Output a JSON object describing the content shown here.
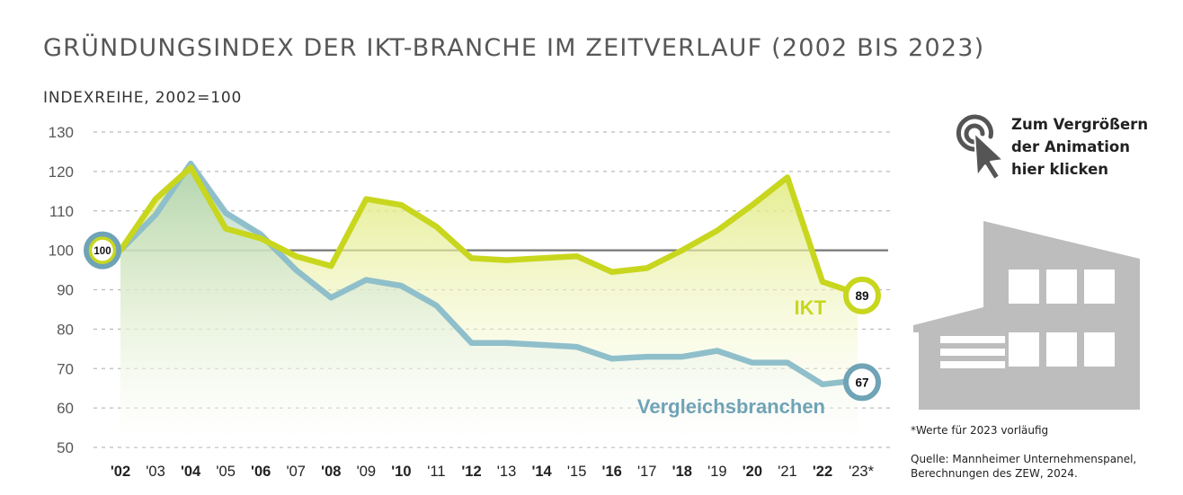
{
  "title": "GRÜNDUNGSINDEX DER IKT-BRANCHE IM ZEITVERLAUF (2002 BIS 2023)",
  "subtitle": "INDEXREIHE, 2002=100",
  "cta": {
    "lines": [
      "Zum Vergrößern",
      "der Animation",
      "hier klicken"
    ],
    "icon": "cursor-click-icon"
  },
  "illustration": "building-icon",
  "footnote": "*Werte für 2023 vorläufig",
  "source": {
    "lines": [
      "Quelle: Mannheimer Unternehmenspanel,",
      "Berechnungen des ZEW, 2024."
    ]
  },
  "colors": {
    "ikt": "#c8d61e",
    "vergleich": "#8fbfca",
    "vergleich_dark": "#6fa3b6",
    "grid": "#bbbbbb",
    "baseline": "#777777",
    "text": "#575757"
  },
  "chart_data": {
    "type": "line",
    "title": "GRÜNDUNGSINDEX DER IKT-BRANCHE IM ZEITVERLAUF (2002 BIS 2023)",
    "ylabel": "INDEXREIHE, 2002=100",
    "ylim": [
      50,
      130
    ],
    "yticks": [
      130,
      120,
      110,
      100,
      90,
      80,
      70,
      60,
      50
    ],
    "grid": true,
    "reference_line": 100,
    "x": [
      "'02",
      "'03",
      "'04",
      "'05",
      "'06",
      "'07",
      "'08",
      "'09",
      "'10",
      "'11",
      "'12",
      "'13",
      "'14",
      "'15",
      "'16",
      "'17",
      "'18",
      "'19",
      "'20",
      "'21",
      "'22",
      "'23*"
    ],
    "bold_ticks": [
      "'02",
      "'04",
      "'06",
      "'08",
      "'10",
      "'12",
      "'14",
      "'16",
      "'18",
      "'20",
      "'22"
    ],
    "series": [
      {
        "name": "IKT",
        "values": [
          100,
          113,
          121,
          105.5,
          103,
          98.5,
          96,
          113,
          111.5,
          106,
          98,
          97.5,
          98,
          98.5,
          94.5,
          95.5,
          100,
          105,
          111.5,
          118.5,
          92,
          89
        ],
        "end_label": "89"
      },
      {
        "name": "Vergleichsbranchen",
        "values": [
          100,
          109,
          122,
          109.5,
          104,
          95,
          88,
          92.5,
          91,
          86,
          76.5,
          76.5,
          76,
          75.5,
          72.5,
          73,
          73,
          74.5,
          71.5,
          71.5,
          66,
          67
        ],
        "end_label": "67"
      }
    ],
    "start_label": "100"
  }
}
